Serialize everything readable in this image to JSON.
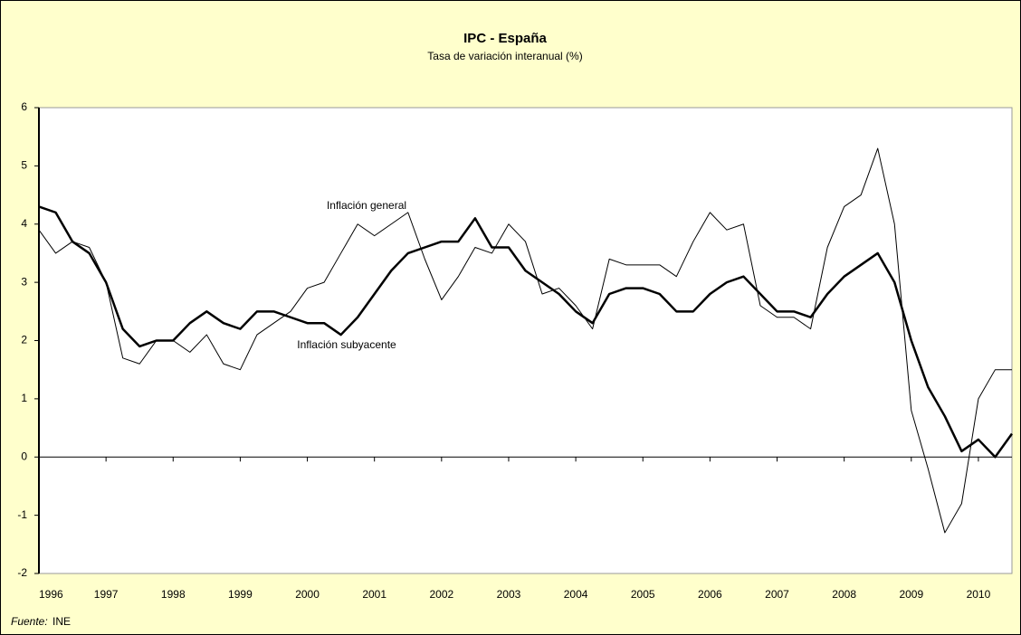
{
  "chart_data": {
    "type": "line",
    "title": "IPC - España",
    "subtitle": "Tasa de variación interanual (%)",
    "annotations": [
      "Inflación general",
      "Inflación subyacente"
    ],
    "source_label": "Fuente:",
    "source": "INE",
    "x": [
      1996,
      1996.25,
      1996.5,
      1996.75,
      1997,
      1997.25,
      1997.5,
      1997.75,
      1998,
      1998.25,
      1998.5,
      1998.75,
      1999,
      1999.25,
      1999.5,
      1999.75,
      2000,
      2000.25,
      2000.5,
      2000.75,
      2001,
      2001.25,
      2001.5,
      2001.75,
      2002,
      2002.25,
      2002.5,
      2002.75,
      2003,
      2003.25,
      2003.5,
      2003.75,
      2004,
      2004.25,
      2004.5,
      2004.75,
      2005,
      2005.25,
      2005.5,
      2005.75,
      2006,
      2006.25,
      2006.5,
      2006.75,
      2007,
      2007.25,
      2007.5,
      2007.75,
      2008,
      2008.25,
      2008.5,
      2008.75,
      2009,
      2009.25,
      2009.5,
      2009.75,
      2010,
      2010.25,
      2010.5
    ],
    "series": [
      {
        "name": "Inflación general",
        "color": "#000000",
        "width": 1,
        "values": [
          3.9,
          3.5,
          3.7,
          3.6,
          3.0,
          1.7,
          1.6,
          2.0,
          2.0,
          1.8,
          2.1,
          1.6,
          1.5,
          2.1,
          2.3,
          2.5,
          2.9,
          3.0,
          3.5,
          4.0,
          3.8,
          4.0,
          4.2,
          3.4,
          2.7,
          3.1,
          3.6,
          3.5,
          4.0,
          3.7,
          2.8,
          2.9,
          2.6,
          2.2,
          3.4,
          3.3,
          3.3,
          3.3,
          3.1,
          3.7,
          4.2,
          3.9,
          4.0,
          2.6,
          2.4,
          2.4,
          2.2,
          3.6,
          4.3,
          4.5,
          5.3,
          4.0,
          0.8,
          -0.2,
          -1.3,
          -0.8,
          1.0,
          1.5,
          1.5
        ]
      },
      {
        "name": "Inflación subyacente",
        "color": "#000000",
        "width": 2.5,
        "values": [
          4.3,
          4.2,
          3.7,
          3.5,
          3.0,
          2.2,
          1.9,
          2.0,
          2.0,
          2.3,
          2.5,
          2.3,
          2.2,
          2.5,
          2.5,
          2.4,
          2.3,
          2.3,
          2.1,
          2.4,
          2.8,
          3.2,
          3.5,
          3.6,
          3.7,
          3.7,
          4.1,
          3.6,
          3.6,
          3.2,
          3.0,
          2.8,
          2.5,
          2.3,
          2.8,
          2.9,
          2.9,
          2.8,
          2.5,
          2.5,
          2.8,
          3.0,
          3.1,
          2.8,
          2.5,
          2.5,
          2.4,
          2.8,
          3.1,
          3.3,
          3.5,
          3.0,
          2.0,
          1.2,
          0.7,
          0.1,
          0.3,
          0.0,
          0.4
        ]
      }
    ],
    "xlim": [
      1996,
      2010.5
    ],
    "xticks": [
      1996,
      1997,
      1998,
      1999,
      2000,
      2001,
      2002,
      2003,
      2004,
      2005,
      2006,
      2007,
      2008,
      2009,
      2010
    ],
    "ylim": [
      -2,
      6
    ],
    "yticks": [
      -2,
      -1,
      0,
      1,
      2,
      3,
      4,
      5,
      6
    ],
    "grid": false
  }
}
